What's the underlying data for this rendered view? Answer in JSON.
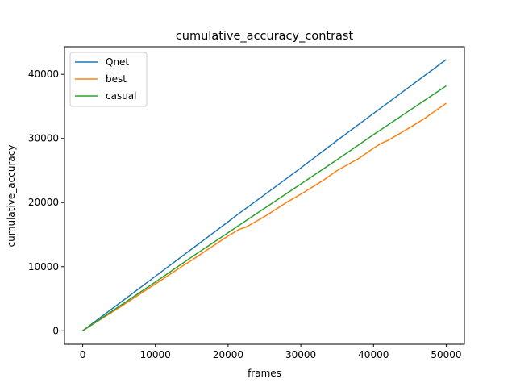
{
  "chart_data": {
    "type": "line",
    "title": "cumulative_accuracy_contrast",
    "xlabel": "frames",
    "ylabel": "cumulative_accuracy",
    "xlim": [
      -2500,
      52500
    ],
    "ylim": [
      -2100,
      44300
    ],
    "xticks": [
      0,
      10000,
      20000,
      30000,
      40000,
      50000
    ],
    "yticks": [
      0,
      10000,
      20000,
      30000,
      40000
    ],
    "grid": false,
    "legend_position": "top-left",
    "series": [
      {
        "name": "Qnet",
        "color": "#1f77b4",
        "x": [
          0,
          5000,
          10000,
          15000,
          20000,
          21500,
          25000,
          30000,
          35000,
          40000,
          45000,
          50000
        ],
        "y": [
          0,
          4250,
          8500,
          12750,
          17000,
          18300,
          21200,
          25400,
          29700,
          33900,
          38100,
          42300
        ]
      },
      {
        "name": "best",
        "color": "#ff7f0e",
        "x": [
          0,
          5000,
          10000,
          14000,
          15000,
          20000,
          21500,
          22500,
          25000,
          28000,
          30000,
          33000,
          35000,
          38000,
          40000,
          41000,
          42000,
          45000,
          47000,
          48000,
          50000
        ],
        "y": [
          0,
          3600,
          7300,
          10300,
          11000,
          14800,
          15800,
          16200,
          17800,
          20000,
          21300,
          23400,
          25000,
          26900,
          28500,
          29200,
          29700,
          31700,
          33100,
          33900,
          35500
        ]
      },
      {
        "name": "casual",
        "color": "#2ca02c",
        "x": [
          0,
          5000,
          10000,
          15000,
          20000,
          25000,
          30000,
          35000,
          40000,
          45000,
          50000
        ],
        "y": [
          0,
          3800,
          7600,
          11500,
          15300,
          19100,
          22900,
          26700,
          30600,
          34400,
          38200
        ]
      }
    ]
  }
}
